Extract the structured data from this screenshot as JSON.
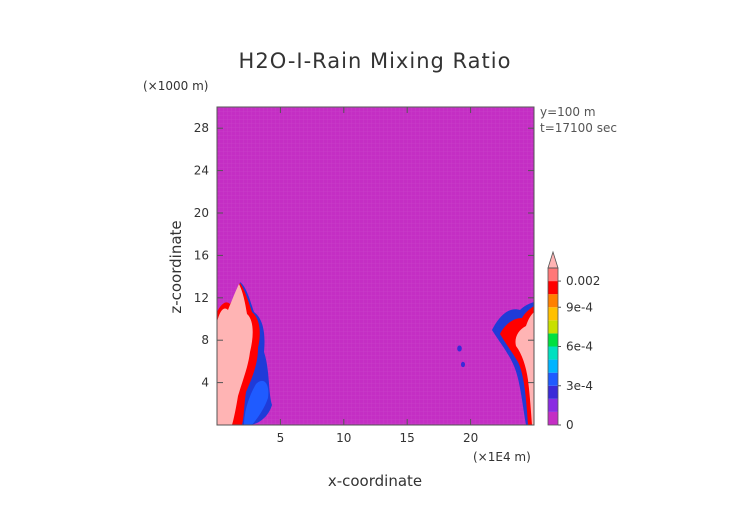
{
  "chart_data": {
    "type": "heatmap",
    "title": "H2O-I-Rain Mixing Ratio",
    "xlabel": "x-coordinate",
    "ylabel": "z-coordinate",
    "x_unit": "(×1E4 m)",
    "y_unit": "(×1000 m)",
    "xlim": [
      0,
      25
    ],
    "ylim": [
      0,
      30
    ],
    "x_ticks": [
      "5",
      "10",
      "15",
      "20"
    ],
    "y_ticks": [
      "4",
      "8",
      "12",
      "16",
      "20",
      "24",
      "28"
    ],
    "annotations": [
      "y=100 m",
      "t=17100 sec"
    ],
    "background_color": "#c42ec4",
    "colorbar": {
      "labels": [
        "0",
        "3e-4",
        "6e-4",
        "9e-4",
        "0.002"
      ],
      "levels": [
        0,
        0.0001,
        0.0002,
        0.0003,
        0.0004,
        0.0005,
        0.0006,
        0.0007,
        0.0008,
        0.0009,
        0.001,
        0.002
      ],
      "colors": [
        "#c42ec4",
        "#8a2be2",
        "#3a2ad8",
        "#1f5bff",
        "#00b4ff",
        "#00e0c0",
        "#00e040",
        "#c8e000",
        "#ffc000",
        "#ff8000",
        "#ff0000",
        "#ff7878",
        "#ffb4b4"
      ]
    }
  }
}
